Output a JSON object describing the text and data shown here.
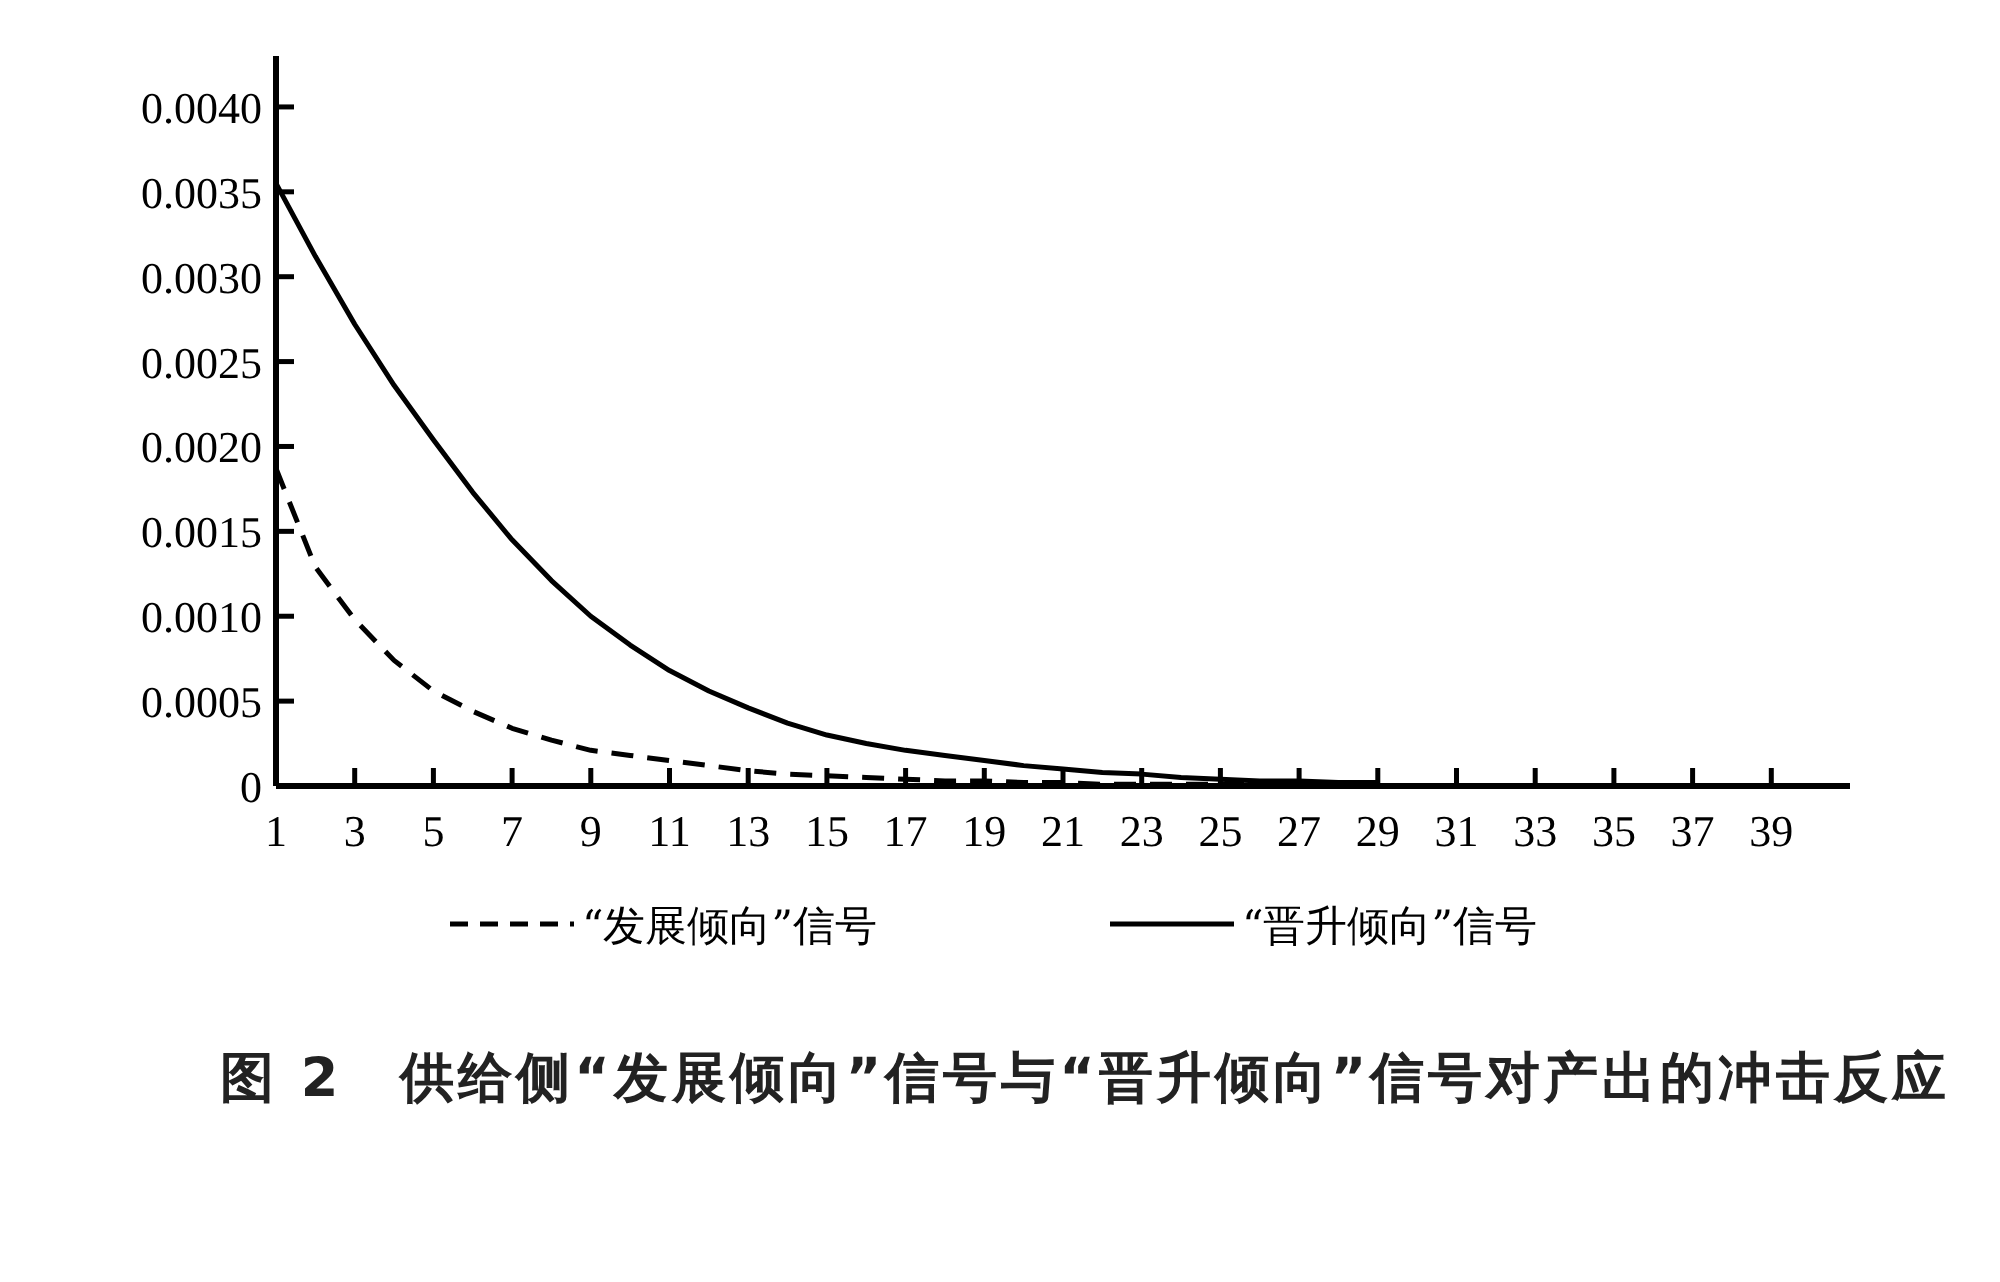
{
  "chart_data": {
    "type": "line",
    "title": "图 2　供给侧“发展倾向”信号与“晋升倾向”信号对产出的冲击反应",
    "x": [
      1,
      2,
      3,
      4,
      5,
      6,
      7,
      8,
      9,
      10,
      11,
      12,
      13,
      14,
      15,
      16,
      17,
      18,
      19,
      20,
      21,
      22,
      23,
      24,
      25,
      26,
      27,
      28,
      29
    ],
    "series": [
      {
        "name": "“发展倾向”信号",
        "color": "#000000",
        "line_style": "dashed",
        "values": [
          0.00187,
          0.00129,
          0.00098,
          0.00074,
          0.00056,
          0.00044,
          0.00034,
          0.00027,
          0.00021,
          0.00018,
          0.00015,
          0.00012,
          9e-05,
          7e-05,
          6e-05,
          5e-05,
          4e-05,
          3e-05,
          3e-05,
          2e-05,
          2e-05,
          1e-05,
          1e-05,
          1e-05,
          1e-05,
          1e-05,
          0,
          0,
          0
        ]
      },
      {
        "name": "“晋升倾向”信号",
        "color": "#000000",
        "line_style": "solid",
        "values": [
          0.00355,
          0.00312,
          0.00272,
          0.00236,
          0.00204,
          0.00173,
          0.00145,
          0.00121,
          0.001,
          0.00083,
          0.00068,
          0.00056,
          0.00046,
          0.00037,
          0.0003,
          0.00025,
          0.00021,
          0.00018,
          0.00015,
          0.00012,
          0.0001,
          8e-05,
          7e-05,
          5e-05,
          4e-05,
          3e-05,
          3e-05,
          2e-05,
          2e-05
        ]
      }
    ],
    "xlim": [
      1,
      41
    ],
    "xticks": [
      1,
      3,
      5,
      7,
      9,
      11,
      13,
      15,
      17,
      19,
      21,
      23,
      25,
      27,
      29,
      31,
      33,
      35,
      37,
      39
    ],
    "ylim": [
      0,
      0.0043
    ],
    "yticks": [
      0,
      {
        "value": 0.0005,
        "label": "0.0005"
      },
      {
        "value": 0.001,
        "label": "0.0010"
      },
      {
        "value": 0.0015,
        "label": "0.0015"
      },
      {
        "value": 0.002,
        "label": "0.0020"
      },
      {
        "value": 0.0025,
        "label": "0.0025"
      },
      {
        "value": 0.003,
        "label": "0.0030"
      },
      {
        "value": 0.0035,
        "label": "0.0035"
      },
      {
        "value": 0.004,
        "label": "0.0040"
      }
    ],
    "legend": "bottom"
  }
}
